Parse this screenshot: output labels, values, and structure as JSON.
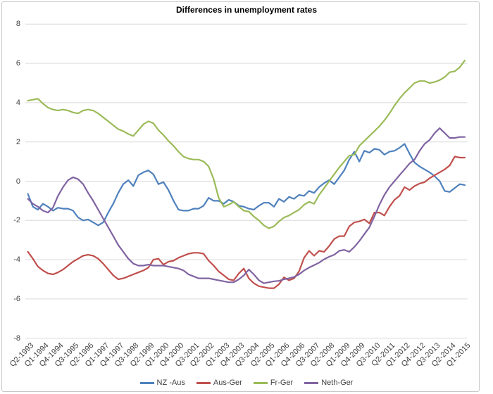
{
  "window": {
    "background": "#FFFFFF",
    "frame_border_color": "#C9C9C9",
    "gridline_color": "#D9D9D9",
    "label_color": "#3F3F3F"
  },
  "chart_data": {
    "type": "line",
    "title": "Differences in unemployment rates",
    "xlabel": "",
    "ylabel": "",
    "ylim": [
      -8,
      8
    ],
    "y_ticks": [
      8,
      6,
      4,
      2,
      0,
      -2,
      -4,
      -6,
      -8
    ],
    "grid": "horizontal",
    "legend_position": "bottom",
    "x_unit": "quarter",
    "x_points_per_tick": 3,
    "x_tick_labels": [
      "Q2-1993",
      "Q1-1994",
      "Q4-1994",
      "Q3-1995",
      "Q2-1996",
      "Q1-1997",
      "Q4-1997",
      "Q3-1998",
      "Q2-1999",
      "Q1-2000",
      "Q4-2000",
      "Q3-2001",
      "Q2-2002",
      "Q1-2003",
      "Q4-2003",
      "Q3-2004",
      "Q2-2005",
      "Q1-2006",
      "Q4-2006",
      "Q3-2007",
      "Q2-2008",
      "Q1-2009",
      "Q4-2009",
      "Q3-2010",
      "Q2-2011",
      "Q1-2012",
      "Q4-2012",
      "Q3-2013",
      "Q2-2014",
      "Q1-2015"
    ],
    "series": [
      {
        "name": "NZ -Aus",
        "color": "#4F81BD",
        "values": [
          -0.65,
          -1.3,
          -1.45,
          -1.15,
          -1.3,
          -1.5,
          -1.35,
          -1.4,
          -1.4,
          -1.5,
          -1.85,
          -2.0,
          -1.95,
          -2.1,
          -2.25,
          -2.1,
          -1.6,
          -1.15,
          -0.6,
          -0.15,
          0.05,
          -0.25,
          0.3,
          0.45,
          0.55,
          0.35,
          -0.15,
          -0.05,
          -0.45,
          -1.0,
          -1.45,
          -1.5,
          -1.5,
          -1.4,
          -1.4,
          -1.25,
          -0.85,
          -1.0,
          -1.0,
          -1.15,
          -0.95,
          -1.05,
          -1.25,
          -1.3,
          -1.4,
          -1.45,
          -1.25,
          -1.1,
          -1.1,
          -1.3,
          -0.9,
          -1.05,
          -0.8,
          -0.9,
          -0.7,
          -0.75,
          -0.5,
          -0.6,
          -0.3,
          -0.1,
          0.05,
          -0.15,
          0.2,
          0.55,
          1.1,
          1.5,
          1.0,
          1.55,
          1.45,
          1.65,
          1.6,
          1.35,
          1.5,
          1.55,
          1.7,
          1.9,
          1.4,
          0.95,
          0.75,
          0.6,
          0.45,
          0.25,
          0.0,
          -0.5,
          -0.55,
          -0.35,
          -0.15,
          -0.2
        ]
      },
      {
        "name": "Aus-Ger",
        "color": "#C0504D",
        "values": [
          -3.6,
          -3.95,
          -4.35,
          -4.55,
          -4.7,
          -4.75,
          -4.65,
          -4.5,
          -4.3,
          -4.1,
          -3.95,
          -3.8,
          -3.75,
          -3.8,
          -3.95,
          -4.2,
          -4.5,
          -4.8,
          -5.0,
          -4.95,
          -4.85,
          -4.75,
          -4.65,
          -4.55,
          -4.4,
          -4.0,
          -3.95,
          -4.25,
          -4.1,
          -4.05,
          -3.9,
          -3.8,
          -3.7,
          -3.65,
          -3.65,
          -3.7,
          -4.05,
          -4.3,
          -4.6,
          -4.8,
          -5.0,
          -5.05,
          -4.7,
          -4.45,
          -4.95,
          -5.2,
          -5.35,
          -5.4,
          -5.45,
          -5.45,
          -5.25,
          -4.9,
          -5.05,
          -4.95,
          -4.6,
          -3.9,
          -3.55,
          -3.8,
          -3.55,
          -3.6,
          -3.3,
          -2.95,
          -2.8,
          -2.8,
          -2.3,
          -2.1,
          -2.05,
          -1.95,
          -2.15,
          -1.6,
          -1.6,
          -1.75,
          -1.3,
          -0.95,
          -0.75,
          -0.3,
          -0.45,
          -0.25,
          -0.12,
          -0.05,
          0.15,
          0.3,
          0.45,
          0.6,
          0.8,
          1.25,
          1.2,
          1.2
        ]
      },
      {
        "name": "Fr-Ger",
        "color": "#9BBB59",
        "values": [
          4.1,
          4.15,
          4.2,
          3.95,
          3.75,
          3.65,
          3.6,
          3.65,
          3.6,
          3.5,
          3.45,
          3.6,
          3.65,
          3.6,
          3.45,
          3.25,
          3.05,
          2.85,
          2.65,
          2.55,
          2.4,
          2.3,
          2.6,
          2.9,
          3.05,
          2.95,
          2.6,
          2.35,
          2.05,
          1.8,
          1.5,
          1.25,
          1.15,
          1.1,
          1.1,
          1.0,
          0.75,
          0.1,
          -0.85,
          -1.3,
          -1.2,
          -1.05,
          -1.3,
          -1.5,
          -1.55,
          -1.8,
          -2.0,
          -2.25,
          -2.4,
          -2.3,
          -2.05,
          -1.85,
          -1.75,
          -1.6,
          -1.45,
          -1.2,
          -1.05,
          -1.15,
          -0.7,
          -0.35,
          0.0,
          0.35,
          0.7,
          1.0,
          1.3,
          1.35,
          1.8,
          2.05,
          2.3,
          2.55,
          2.8,
          3.1,
          3.45,
          3.85,
          4.2,
          4.5,
          4.75,
          5.0,
          5.1,
          5.1,
          5.0,
          5.05,
          5.15,
          5.3,
          5.55,
          5.6,
          5.8,
          6.15
        ]
      },
      {
        "name": "Neth-Ger",
        "color": "#8064A2",
        "values": [
          -0.9,
          -1.15,
          -1.3,
          -1.5,
          -1.6,
          -1.35,
          -0.75,
          -0.3,
          0.05,
          0.2,
          0.1,
          -0.15,
          -0.6,
          -1.0,
          -1.45,
          -1.9,
          -2.35,
          -2.8,
          -3.25,
          -3.6,
          -3.95,
          -4.2,
          -4.3,
          -4.3,
          -4.25,
          -4.3,
          -4.3,
          -4.3,
          -4.35,
          -4.4,
          -4.45,
          -4.55,
          -4.75,
          -4.85,
          -4.95,
          -4.95,
          -4.95,
          -5.0,
          -5.05,
          -5.1,
          -5.15,
          -5.15,
          -5.0,
          -4.8,
          -4.5,
          -4.75,
          -5.05,
          -5.2,
          -5.15,
          -5.1,
          -5.08,
          -5.0,
          -4.95,
          -4.88,
          -4.75,
          -4.55,
          -4.4,
          -4.28,
          -4.15,
          -3.98,
          -3.85,
          -3.75,
          -3.55,
          -3.5,
          -3.6,
          -3.35,
          -3.05,
          -2.7,
          -2.35,
          -1.8,
          -1.2,
          -0.7,
          -0.3,
          0.0,
          0.3,
          0.6,
          0.9,
          1.1,
          1.55,
          1.9,
          2.1,
          2.45,
          2.7,
          2.45,
          2.2,
          2.2,
          2.25,
          2.25
        ]
      }
    ]
  }
}
